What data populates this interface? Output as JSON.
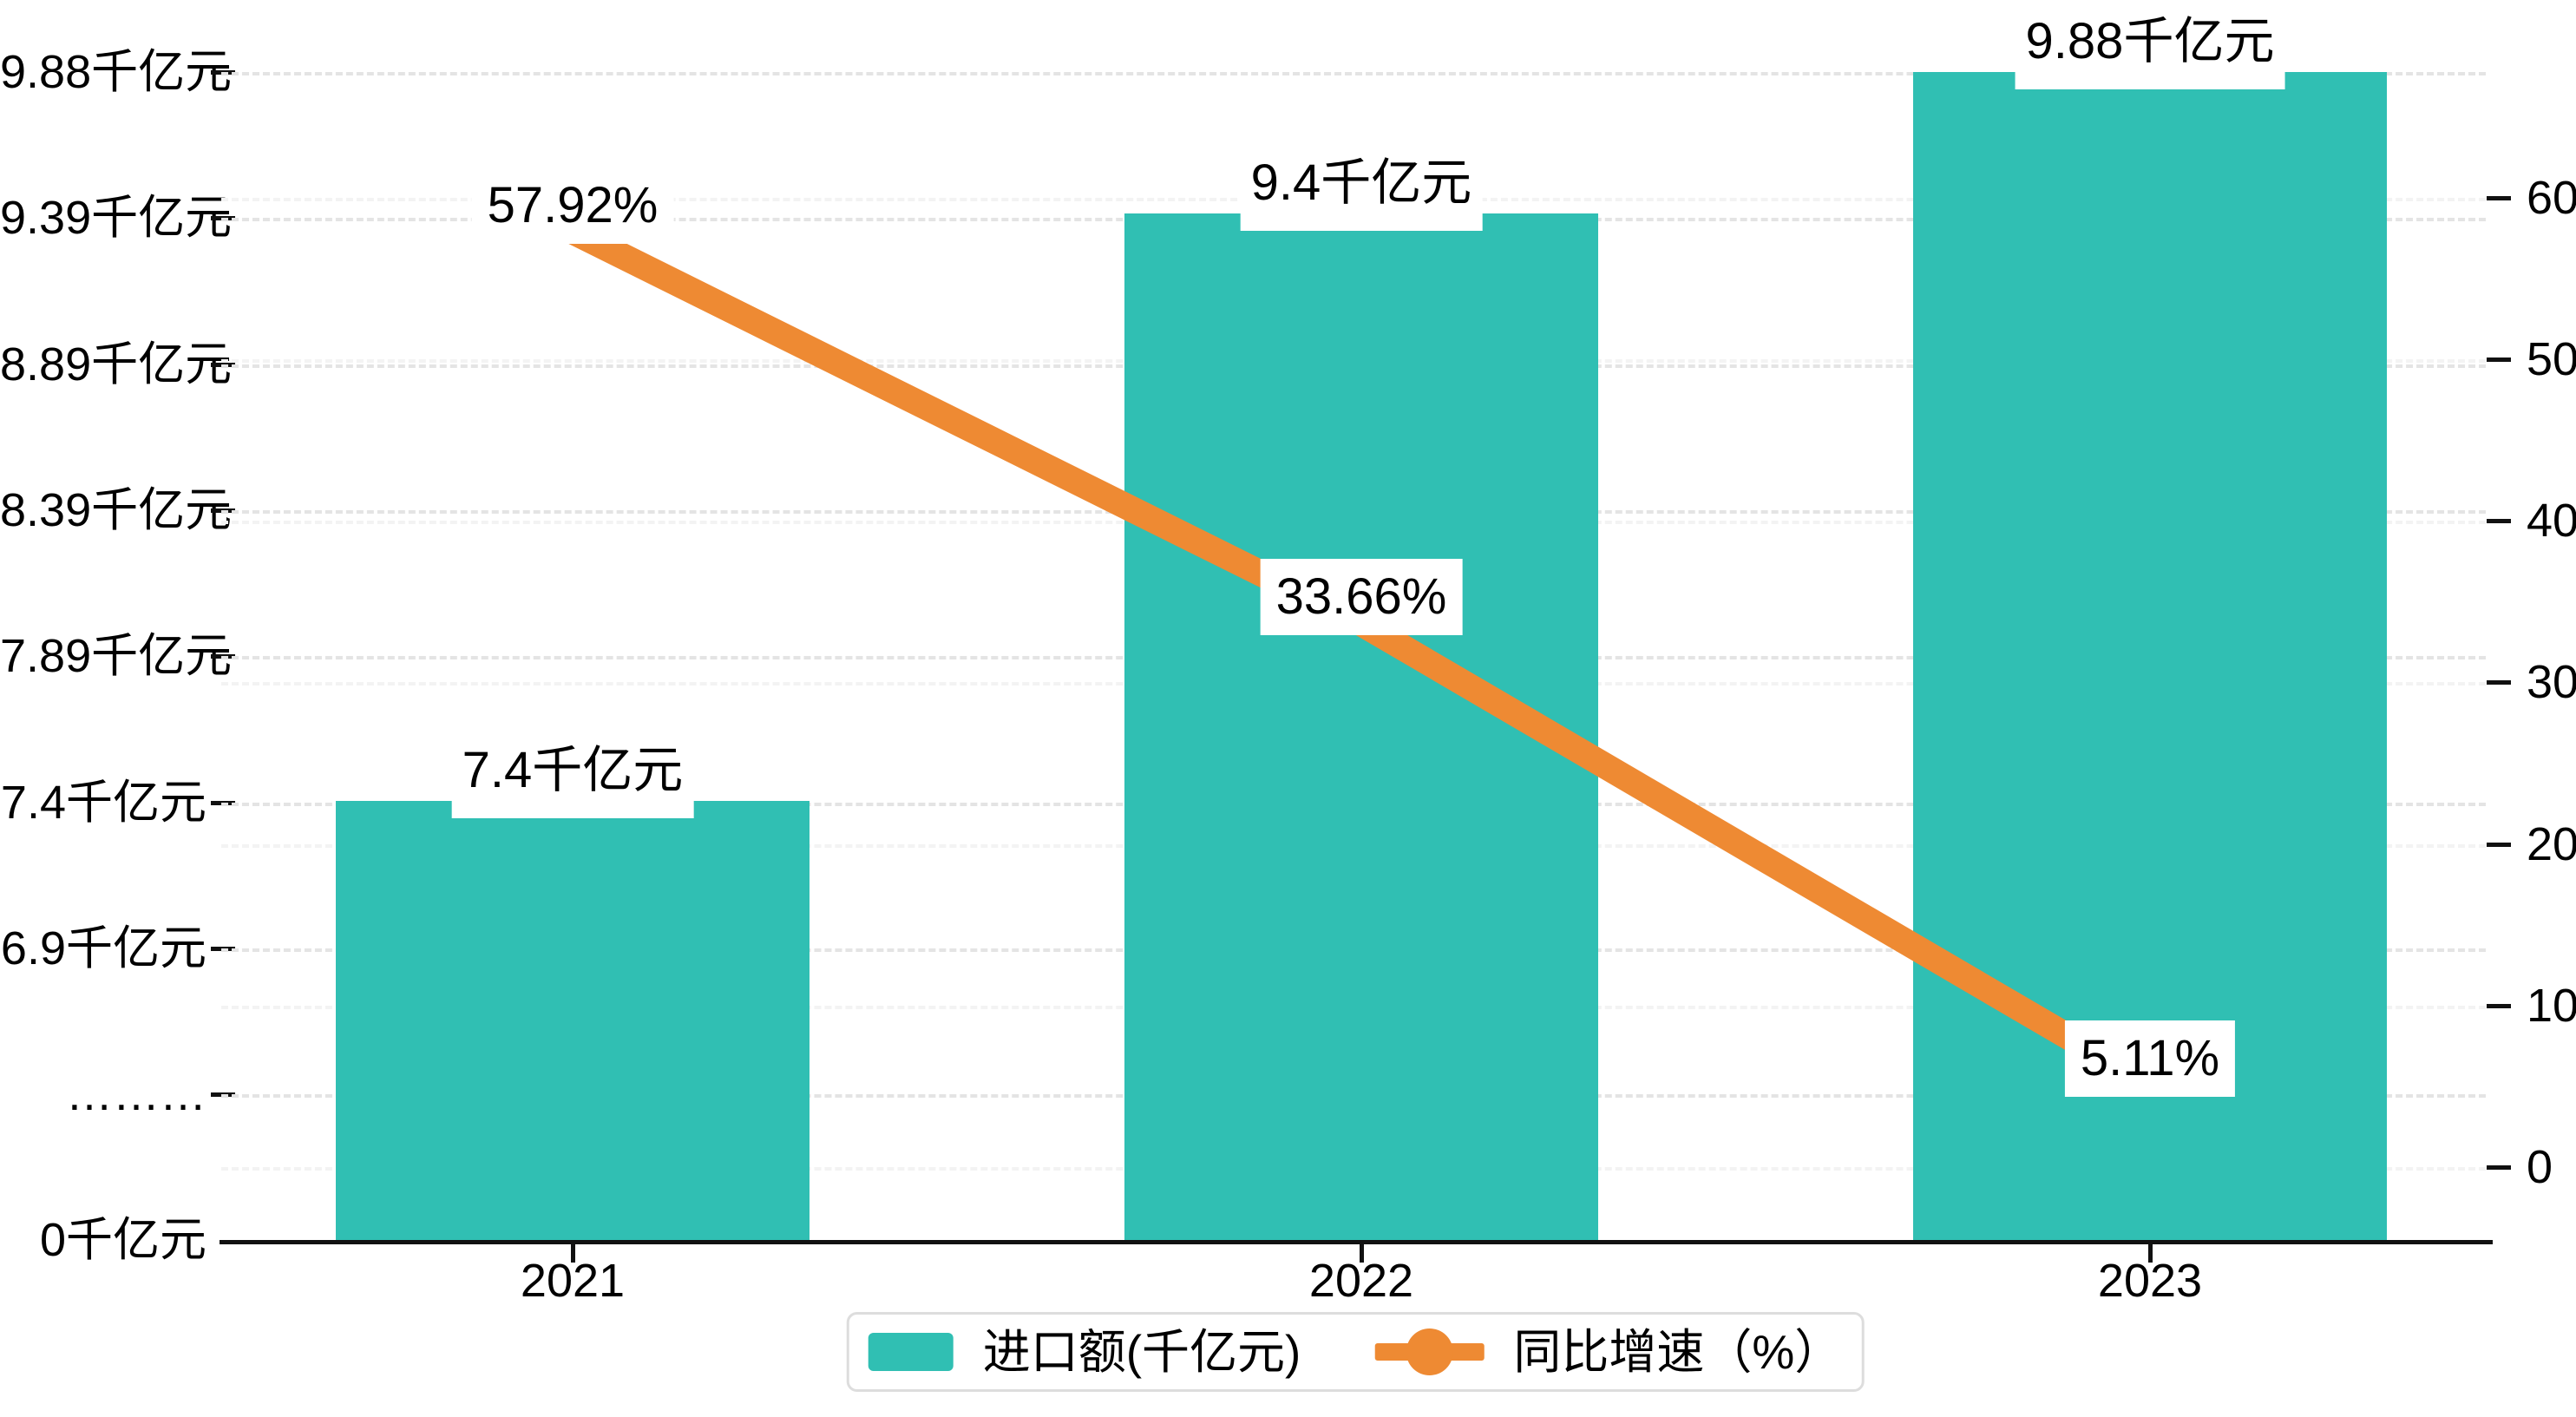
{
  "chart_data": {
    "type": "combo",
    "categories": [
      "2021",
      "2022",
      "2023"
    ],
    "series": [
      {
        "name": "进口额(千亿元)",
        "type": "bar",
        "axis": "left",
        "values": [
          7.4,
          9.4,
          9.88
        ],
        "value_labels": [
          "7.4千亿元",
          "9.4千亿元",
          "9.88千亿元"
        ],
        "color": "#30bfb3"
      },
      {
        "name": "同比增速（%）",
        "type": "line",
        "axis": "right",
        "values": [
          57.92,
          33.66,
          5.11
        ],
        "value_labels": [
          "57.92%",
          "33.66%",
          "5.11%"
        ],
        "color": "#ee8a33"
      }
    ],
    "left_axis": {
      "unit": "千亿元",
      "tick_labels": [
        "9.88千亿元",
        "9.39千亿元",
        "8.89千亿元",
        "8.39千亿元",
        "7.89千亿元",
        "7.4千亿元",
        "6.9千亿元",
        "………",
        "0千亿元"
      ],
      "broken_axis": true
    },
    "right_axis": {
      "tick_labels": [
        "60",
        "50",
        "40",
        "30",
        "20",
        "10",
        "0"
      ],
      "range": [
        0,
        60
      ]
    },
    "grid": "dashed-horizontal",
    "legend_position": "bottom",
    "title": ""
  },
  "colors": {
    "bar": "#30bfb3",
    "line": "#ee8a33",
    "axis": "#111111",
    "grid_left": "#e4e4e4",
    "grid_right": "#f3f3f3",
    "text": "#000000",
    "legend_border": "#dddddd",
    "background": "#ffffff"
  }
}
